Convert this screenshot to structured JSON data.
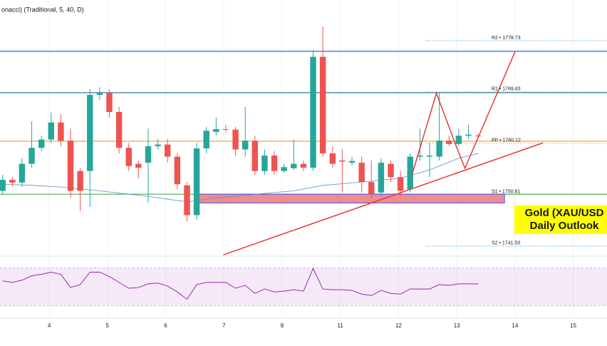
{
  "chart_data": {
    "type": "candlestick",
    "indicator_label": "onacci) (Traditional, 5, 40, D)",
    "badge": [
      "Gold (XAU/USD",
      "Daily Outlook"
    ],
    "badge_color": "#ffff00",
    "up_color": "#26a69a",
    "down_color": "#ef5350",
    "xlim": [
      -0.845,
      9.58
    ],
    "ylim": [
      1739.8,
      1786.1
    ],
    "xticks": [
      {
        "value": 0,
        "label": "4"
      },
      {
        "value": 1,
        "label": "5"
      },
      {
        "value": 2,
        "label": "6"
      },
      {
        "value": 3,
        "label": "7"
      },
      {
        "value": 4,
        "label": "8"
      },
      {
        "value": 5,
        "label": "11"
      },
      {
        "value": 6,
        "label": "12"
      },
      {
        "value": 7,
        "label": "13"
      },
      {
        "value": 8,
        "label": "14"
      },
      {
        "value": 9,
        "label": "15"
      }
    ],
    "x": [
      -0.8,
      -0.633,
      -0.467,
      -0.3,
      -0.133,
      0.033,
      0.2,
      0.367,
      0.533,
      0.7,
      0.867,
      1.033,
      1.2,
      1.367,
      1.533,
      1.7,
      1.867,
      2.033,
      2.2,
      2.367,
      2.533,
      2.7,
      2.867,
      3.033,
      3.2,
      3.367,
      3.533,
      3.7,
      3.867,
      4.033,
      4.2,
      4.367,
      4.533,
      4.7,
      4.867,
      5.033,
      5.2,
      5.367,
      5.533,
      5.7,
      5.867,
      6.033,
      6.2,
      6.367,
      6.533,
      6.7,
      6.867,
      7.033,
      7.2,
      7.367
    ],
    "open": [
      1751.5,
      1753.5,
      1753.0,
      1756.4,
      1759.3,
      1760.8,
      1763.9,
      1760.6,
      1755.1,
      1755.1,
      1768.9,
      1769.3,
      1765.8,
      1759.3,
      1756.4,
      1756.6,
      1759.6,
      1759.9,
      1757.7,
      1752.5,
      1747.1,
      1759.2,
      1762.2,
      1762.7,
      1762.6,
      1759.0,
      1760.6,
      1755.1,
      1757.9,
      1755.1,
      1755.6,
      1756.4,
      1755.7,
      1775.8,
      1758.3,
      1757.0,
      1756.6,
      1756.6,
      1753.1,
      1751.2,
      1756.4,
      1754.0,
      1751.8,
      1757.7,
      1757.7,
      1757.7,
      1760.6,
      1760.0,
      1761.5,
      1761.5
    ],
    "high": [
      1754.4,
      1754.0,
      1757.4,
      1764.1,
      1761.5,
      1765.7,
      1765.4,
      1762.8,
      1755.7,
      1769.9,
      1770.3,
      1769.9,
      1766.7,
      1760.2,
      1757.0,
      1762.8,
      1760.9,
      1760.9,
      1758.3,
      1753.1,
      1760.2,
      1763.1,
      1764.8,
      1763.5,
      1763.1,
      1766.7,
      1761.5,
      1759.0,
      1758.7,
      1756.4,
      1760.8,
      1757.0,
      1777.0,
      1781.2,
      1759.6,
      1759.0,
      1757.7,
      1757.7,
      1757.0,
      1757.4,
      1757.0,
      1755.1,
      1758.3,
      1762.8,
      1760.2,
      1769.3,
      1761.5,
      1762.8,
      1763.5,
      1761.8
    ],
    "low": [
      1750.9,
      1752.2,
      1752.2,
      1755.7,
      1758.7,
      1760.2,
      1759.6,
      1750.2,
      1747.8,
      1748.6,
      1768.0,
      1764.8,
      1758.3,
      1755.1,
      1753.8,
      1749.3,
      1759.0,
      1756.6,
      1751.8,
      1746.0,
      1746.3,
      1758.3,
      1761.5,
      1762.1,
      1757.9,
      1757.7,
      1754.4,
      1754.4,
      1754.4,
      1754.8,
      1755.3,
      1755.1,
      1755.1,
      1757.7,
      1755.7,
      1751.2,
      1756.1,
      1751.2,
      1750.2,
      1750.5,
      1753.1,
      1750.5,
      1751.2,
      1757.0,
      1754.0,
      1757.0,
      1759.6,
      1759.6,
      1760.9,
      1761.0
    ],
    "close": [
      1753.5,
      1753.0,
      1756.4,
      1759.3,
      1760.8,
      1763.9,
      1760.6,
      1751.5,
      1751.5,
      1768.9,
      1769.2,
      1765.8,
      1759.3,
      1756.0,
      1755.7,
      1759.6,
      1759.9,
      1757.7,
      1752.7,
      1747.1,
      1759.2,
      1762.4,
      1762.7,
      1762.6,
      1759.0,
      1760.6,
      1755.1,
      1757.9,
      1755.1,
      1755.8,
      1756.4,
      1755.7,
      1775.8,
      1758.3,
      1756.4,
      1756.8,
      1756.9,
      1753.1,
      1750.9,
      1756.6,
      1754.0,
      1751.5,
      1757.7,
      1757.9,
      1757.9,
      1760.6,
      1760.0,
      1761.5,
      1761.7,
      1761.4
    ],
    "ma": {
      "color": "#5b8fc9",
      "x": [
        -0.8,
        -0.3,
        0.2,
        0.867,
        1.7,
        2.367,
        2.867,
        3.867,
        4.2,
        4.7,
        5.367,
        6.033,
        6.533,
        7.033,
        7.367
      ],
      "values": [
        1752.7,
        1752.5,
        1752.2,
        1751.5,
        1750.5,
        1749.5,
        1750.2,
        1751.2,
        1751.5,
        1752.5,
        1753.1,
        1753.8,
        1755.3,
        1757.4,
        1758.3
      ]
    },
    "levels": [
      {
        "label": "R2 • 1778.73",
        "value": 1778.73,
        "color": "#2196f3"
      },
      {
        "label": "R1 • 1769.43",
        "value": 1769.43,
        "color": "#4caf50"
      },
      {
        "label": "PP • 1760.12",
        "value": 1760.12,
        "color": "#ff9800"
      },
      {
        "label": "S1 • 1750.81",
        "value": 1750.81,
        "color": "#4caf50"
      },
      {
        "label": "S2 • 1741.50",
        "value": 1741.5,
        "color": "#2196f3"
      }
    ],
    "levels_start": 6.47,
    "horizontal_lines": [
      {
        "value": 1776.8,
        "color": "#2962ff"
      },
      {
        "value": 1769.3,
        "color": "#2a7cb0"
      },
      {
        "value": 1760.5,
        "color": "#f59a23"
      },
      {
        "value": 1750.9,
        "color": "#4caf50"
      }
    ],
    "zone": {
      "x": [
        2.56,
        7.82
      ],
      "y": [
        1749.3,
        1750.9
      ],
      "color": "#f28b8b"
    },
    "trendline": {
      "x": [
        2.99,
        8.48
      ],
      "y": [
        1739.9,
        1760.2
      ],
      "color": "#e53935"
    },
    "zigzag": {
      "x": [
        6.23,
        6.65,
        6.99,
        7.14,
        8.0
      ],
      "y": [
        1754.4,
        1769.2,
        1759.6,
        1755.6,
        1776.7
      ],
      "color": "#e53935"
    },
    "rsi": {
      "color": "#9c27b0",
      "ylim": [
        20,
        80
      ],
      "band": [
        30,
        70
      ],
      "values": [
        56.2,
        54.6,
        56.9,
        61.5,
        63.1,
        65.4,
        63.1,
        49.2,
        52.3,
        65.4,
        65.4,
        60.8,
        54.6,
        48.5,
        49.2,
        53.1,
        53.9,
        50.8,
        44.6,
        36.9,
        52.3,
        54.6,
        54.6,
        54.6,
        48.5,
        51.5,
        43.1,
        47.7,
        44.6,
        45.4,
        46.9,
        45.4,
        69.2,
        47.7,
        46.9,
        46.9,
        46.2,
        42.3,
        40.8,
        46.2,
        43.1,
        42.3,
        47.7,
        47.7,
        47.7,
        52.3,
        51.5,
        53.1,
        53.1,
        53.1
      ]
    }
  }
}
